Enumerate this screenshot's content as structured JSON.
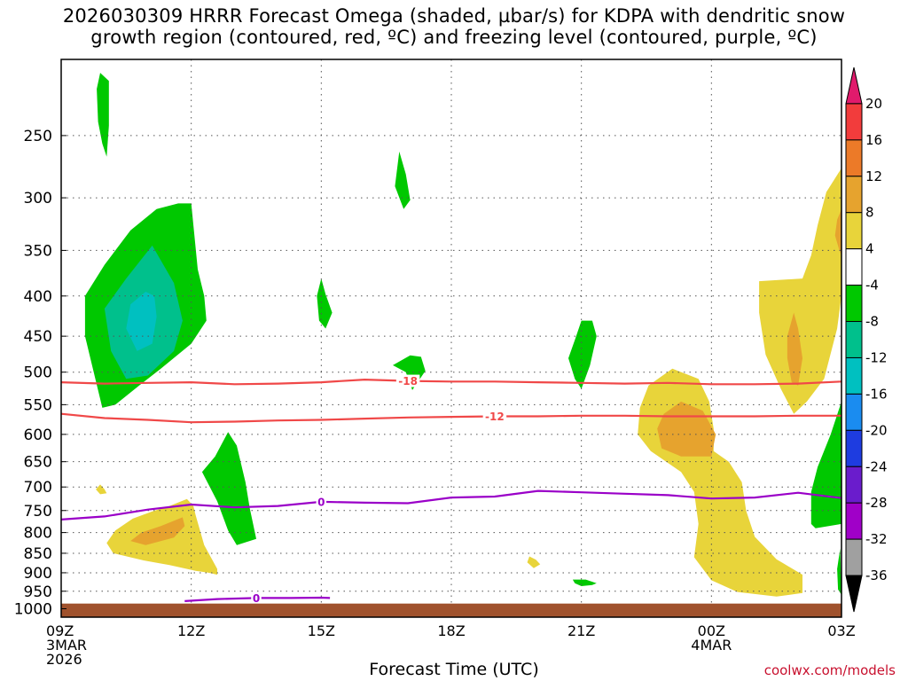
{
  "title_lines": [
    "2026030309 HRRR Forecast Omega (shaded, µbar/s) for KDPA with dendritic snow",
    "growth region (contoured, red, ºC) and freezing level (contoured, purple, ºC)"
  ],
  "credit": "coolwx.com/models",
  "chart_data": {
    "type": "heatmap",
    "xlabel": "Forecast Time (UTC)",
    "x_ticks": [
      {
        "hour": 0,
        "lines": [
          "09Z",
          "3MAR",
          "2026"
        ]
      },
      {
        "hour": 3,
        "lines": [
          "12Z"
        ]
      },
      {
        "hour": 6,
        "lines": [
          "15Z"
        ]
      },
      {
        "hour": 9,
        "lines": [
          "18Z"
        ]
      },
      {
        "hour": 12,
        "lines": [
          "21Z"
        ]
      },
      {
        "hour": 15,
        "lines": [
          "00Z",
          "4MAR"
        ]
      },
      {
        "hour": 18,
        "lines": [
          "03Z"
        ]
      }
    ],
    "x_range_hours": [
      0,
      18
    ],
    "y_unit": "hPa",
    "y_scale": "log, reversed",
    "y_range": [
      200,
      1025
    ],
    "y_ticks": [
      250,
      300,
      350,
      400,
      450,
      500,
      550,
      600,
      650,
      700,
      750,
      800,
      850,
      900,
      950,
      1000
    ],
    "grid": true,
    "colorbar": {
      "labels": [
        "20",
        "16",
        "12",
        "8",
        "4",
        "-4",
        "-8",
        "-12",
        "-16",
        "-20",
        "-24",
        "-28",
        "-32",
        "-36"
      ],
      "colors": [
        "#e11a6c",
        "#f23c3c",
        "#ec7a28",
        "#e6a32e",
        "#e8d43a",
        "#ffffff",
        "#00c800",
        "#00c08c",
        "#00c0c0",
        "#1a8cf0",
        "#1e3ce0",
        "#6a1ccc",
        "#a000c8",
        "#a0a0a0",
        "#000000"
      ]
    },
    "contours": [
      {
        "value": "-18",
        "color": "#f04848",
        "points": [
          [
            0,
            515
          ],
          [
            1,
            517
          ],
          [
            2,
            516
          ],
          [
            3,
            515
          ],
          [
            4,
            518
          ],
          [
            5,
            517
          ],
          [
            6,
            515
          ],
          [
            7,
            511
          ],
          [
            8,
            513
          ],
          [
            9,
            514
          ],
          [
            10,
            514
          ],
          [
            11,
            515
          ],
          [
            12,
            516
          ],
          [
            13,
            517
          ],
          [
            14,
            516
          ],
          [
            15,
            518
          ],
          [
            16,
            518
          ],
          [
            17,
            517
          ],
          [
            18,
            514
          ]
        ]
      },
      {
        "value": "-12",
        "color": "#f04848",
        "points": [
          [
            0,
            565
          ],
          [
            1,
            572
          ],
          [
            2,
            575
          ],
          [
            3,
            579
          ],
          [
            4,
            578
          ],
          [
            5,
            576
          ],
          [
            6,
            575
          ],
          [
            7,
            573
          ],
          [
            8,
            571
          ],
          [
            9,
            570
          ],
          [
            10,
            569
          ],
          [
            11,
            569
          ],
          [
            12,
            568
          ],
          [
            13,
            568
          ],
          [
            14,
            569
          ],
          [
            15,
            569
          ],
          [
            16,
            569
          ],
          [
            17,
            568
          ],
          [
            18,
            568
          ]
        ]
      },
      {
        "value": "0",
        "color": "#9a00c8",
        "points": [
          [
            0,
            770
          ],
          [
            1,
            763
          ],
          [
            2,
            748
          ],
          [
            3,
            737
          ],
          [
            4,
            743
          ],
          [
            5,
            740
          ],
          [
            6,
            731
          ],
          [
            7,
            733
          ],
          [
            8,
            734
          ],
          [
            9,
            722
          ],
          [
            10,
            720
          ],
          [
            11,
            708
          ],
          [
            12,
            711
          ],
          [
            13,
            714
          ],
          [
            14,
            717
          ],
          [
            15,
            724
          ],
          [
            16,
            722
          ],
          [
            17,
            712
          ],
          [
            18,
            723
          ]
        ]
      },
      {
        "value": "0",
        "color": "#9a00c8",
        "points": [
          [
            2.85,
            978
          ],
          [
            3.6,
            972
          ],
          [
            4.5,
            969
          ],
          [
            5.3,
            969
          ],
          [
            6.0,
            968
          ],
          [
            6.2,
            969
          ]
        ]
      }
    ],
    "shaded_regions": [
      {
        "color": "#00c800",
        "points": [
          [
            0.9,
            208
          ],
          [
            1.1,
            213
          ],
          [
            1.1,
            243
          ],
          [
            1.05,
            266
          ],
          [
            0.95,
            256
          ],
          [
            0.85,
            240
          ],
          [
            0.82,
            218
          ]
        ]
      },
      {
        "color": "#00c800",
        "points": [
          [
            3,
            305
          ],
          [
            2.7,
            305
          ],
          [
            2.2,
            310
          ],
          [
            1.6,
            330
          ],
          [
            1.0,
            365
          ],
          [
            0.55,
            400
          ],
          [
            0.55,
            450
          ],
          [
            0.75,
            500
          ],
          [
            0.95,
            555
          ],
          [
            1.25,
            550
          ],
          [
            1.8,
            520
          ],
          [
            2.3,
            495
          ],
          [
            3.0,
            460
          ],
          [
            3.35,
            430
          ],
          [
            3.3,
            400
          ],
          [
            3.15,
            370
          ]
        ]
      },
      {
        "color": "#00c08c",
        "points": [
          [
            2.1,
            345
          ],
          [
            1.5,
            380
          ],
          [
            1.0,
            415
          ],
          [
            1.15,
            470
          ],
          [
            1.5,
            510
          ],
          [
            2.0,
            505
          ],
          [
            2.6,
            470
          ],
          [
            2.8,
            430
          ],
          [
            2.6,
            385
          ]
        ]
      },
      {
        "color": "#00c0c0",
        "points": [
          [
            1.95,
            395
          ],
          [
            1.6,
            410
          ],
          [
            1.5,
            440
          ],
          [
            1.75,
            470
          ],
          [
            2.1,
            460
          ],
          [
            2.2,
            425
          ],
          [
            2.15,
            400
          ]
        ]
      },
      {
        "color": "#00c800",
        "points": [
          [
            6.0,
            380
          ],
          [
            6.1,
            398
          ],
          [
            6.25,
            420
          ],
          [
            6.1,
            440
          ],
          [
            5.95,
            430
          ],
          [
            5.9,
            400
          ]
        ]
      },
      {
        "color": "#00c800",
        "points": [
          [
            7.8,
            262
          ],
          [
            7.95,
            280
          ],
          [
            8.05,
            302
          ],
          [
            7.9,
            310
          ],
          [
            7.7,
            290
          ]
        ]
      },
      {
        "color": "#00c800",
        "points": [
          [
            8.05,
            476
          ],
          [
            8.3,
            478
          ],
          [
            8.4,
            498
          ],
          [
            8.1,
            527
          ],
          [
            7.95,
            500
          ],
          [
            7.65,
            490
          ]
        ]
      },
      {
        "color": "#00c800",
        "points": [
          [
            12.0,
            430
          ],
          [
            11.85,
            455
          ],
          [
            11.7,
            480
          ],
          [
            11.85,
            510
          ],
          [
            12.0,
            525
          ],
          [
            12.2,
            490
          ],
          [
            12.35,
            450
          ],
          [
            12.25,
            430
          ]
        ]
      },
      {
        "color": "#00c800",
        "points": [
          [
            3.85,
            596
          ],
          [
            3.55,
            640
          ],
          [
            3.25,
            670
          ],
          [
            3.6,
            730
          ],
          [
            3.85,
            795
          ],
          [
            4.05,
            830
          ],
          [
            4.5,
            815
          ],
          [
            4.35,
            745
          ],
          [
            4.25,
            690
          ],
          [
            4.05,
            620
          ]
        ]
      },
      {
        "color": "#00c800",
        "points": [
          [
            18,
            545
          ],
          [
            17.75,
            600
          ],
          [
            17.45,
            660
          ],
          [
            17.3,
            710
          ],
          [
            17.3,
            780
          ],
          [
            17.4,
            790
          ],
          [
            18,
            780
          ]
        ]
      },
      {
        "color": "#00c800",
        "points": [
          [
            17.97,
            838
          ],
          [
            17.9,
            890
          ],
          [
            17.92,
            945
          ],
          [
            18,
            960
          ]
        ]
      },
      {
        "color": "#00c800",
        "points": [
          [
            11.8,
            918
          ],
          [
            11.85,
            928
          ],
          [
            12.0,
            936
          ],
          [
            12.25,
            933
          ],
          [
            12.35,
            928
          ],
          [
            12.1,
            918
          ]
        ]
      },
      {
        "color": "#e8d43a",
        "points": [
          [
            0.9,
            695
          ],
          [
            1.0,
            705
          ],
          [
            1.05,
            713
          ],
          [
            0.9,
            715
          ],
          [
            0.8,
            705
          ]
        ]
      },
      {
        "color": "#e8d43a",
        "points": [
          [
            2.9,
            725
          ],
          [
            2.5,
            740
          ],
          [
            2.1,
            752
          ],
          [
            1.65,
            768
          ],
          [
            1.25,
            795
          ],
          [
            1.05,
            825
          ],
          [
            1.2,
            850
          ],
          [
            1.9,
            868
          ],
          [
            2.5,
            880
          ],
          [
            3.1,
            895
          ],
          [
            3.4,
            900
          ],
          [
            3.6,
            905
          ],
          [
            3.6,
            890
          ],
          [
            3.3,
            830
          ],
          [
            3.1,
            760
          ],
          [
            3.05,
            740
          ]
        ]
      },
      {
        "color": "#e6a32e",
        "points": [
          [
            2.8,
            765
          ],
          [
            2.3,
            785
          ],
          [
            1.85,
            800
          ],
          [
            1.6,
            820
          ],
          [
            1.95,
            830
          ],
          [
            2.6,
            812
          ],
          [
            2.85,
            785
          ]
        ]
      },
      {
        "color": "#e8d43a",
        "points": [
          [
            10.8,
            858
          ],
          [
            10.95,
            866
          ],
          [
            11.05,
            878
          ],
          [
            10.9,
            888
          ],
          [
            10.75,
            873
          ]
        ]
      },
      {
        "color": "#e8d43a",
        "points": [
          [
            14.1,
            495
          ],
          [
            13.55,
            520
          ],
          [
            13.35,
            555
          ],
          [
            13.3,
            600
          ],
          [
            13.6,
            630
          ],
          [
            14.3,
            670
          ],
          [
            14.6,
            710
          ],
          [
            14.7,
            780
          ],
          [
            14.6,
            860
          ],
          [
            15.0,
            920
          ],
          [
            15.6,
            952
          ],
          [
            16.5,
            965
          ],
          [
            17.1,
            955
          ],
          [
            17.1,
            905
          ],
          [
            16.5,
            865
          ],
          [
            16.0,
            810
          ],
          [
            15.8,
            750
          ],
          [
            15.7,
            690
          ],
          [
            15.4,
            650
          ],
          [
            15.05,
            630
          ],
          [
            15.05,
            590
          ],
          [
            14.95,
            545
          ],
          [
            14.7,
            510
          ]
        ]
      },
      {
        "color": "#e6a32e",
        "points": [
          [
            14.3,
            545
          ],
          [
            13.9,
            565
          ],
          [
            13.75,
            590
          ],
          [
            13.85,
            625
          ],
          [
            14.3,
            640
          ],
          [
            15.0,
            640
          ],
          [
            15.1,
            600
          ],
          [
            14.8,
            560
          ]
        ]
      },
      {
        "color": "#e8d43a",
        "points": [
          [
            18,
            275
          ],
          [
            17.65,
            295
          ],
          [
            17.45,
            325
          ],
          [
            17.3,
            355
          ],
          [
            17.1,
            380
          ],
          [
            16.1,
            383
          ],
          [
            16.1,
            420
          ],
          [
            16.25,
            475
          ],
          [
            16.6,
            525
          ],
          [
            16.9,
            565
          ],
          [
            17.2,
            545
          ],
          [
            17.6,
            510
          ],
          [
            17.9,
            440
          ],
          [
            18,
            400
          ]
        ]
      },
      {
        "color": "#e6a32e",
        "points": [
          [
            16.9,
            420
          ],
          [
            16.75,
            450
          ],
          [
            16.75,
            480
          ],
          [
            16.85,
            515
          ],
          [
            17.0,
            520
          ],
          [
            17.1,
            480
          ],
          [
            17.0,
            440
          ]
        ]
      },
      {
        "color": "#e6a32e",
        "points": [
          [
            18,
            310
          ],
          [
            17.9,
            320
          ],
          [
            17.85,
            335
          ],
          [
            17.95,
            350
          ],
          [
            18,
            355
          ]
        ]
      }
    ]
  }
}
